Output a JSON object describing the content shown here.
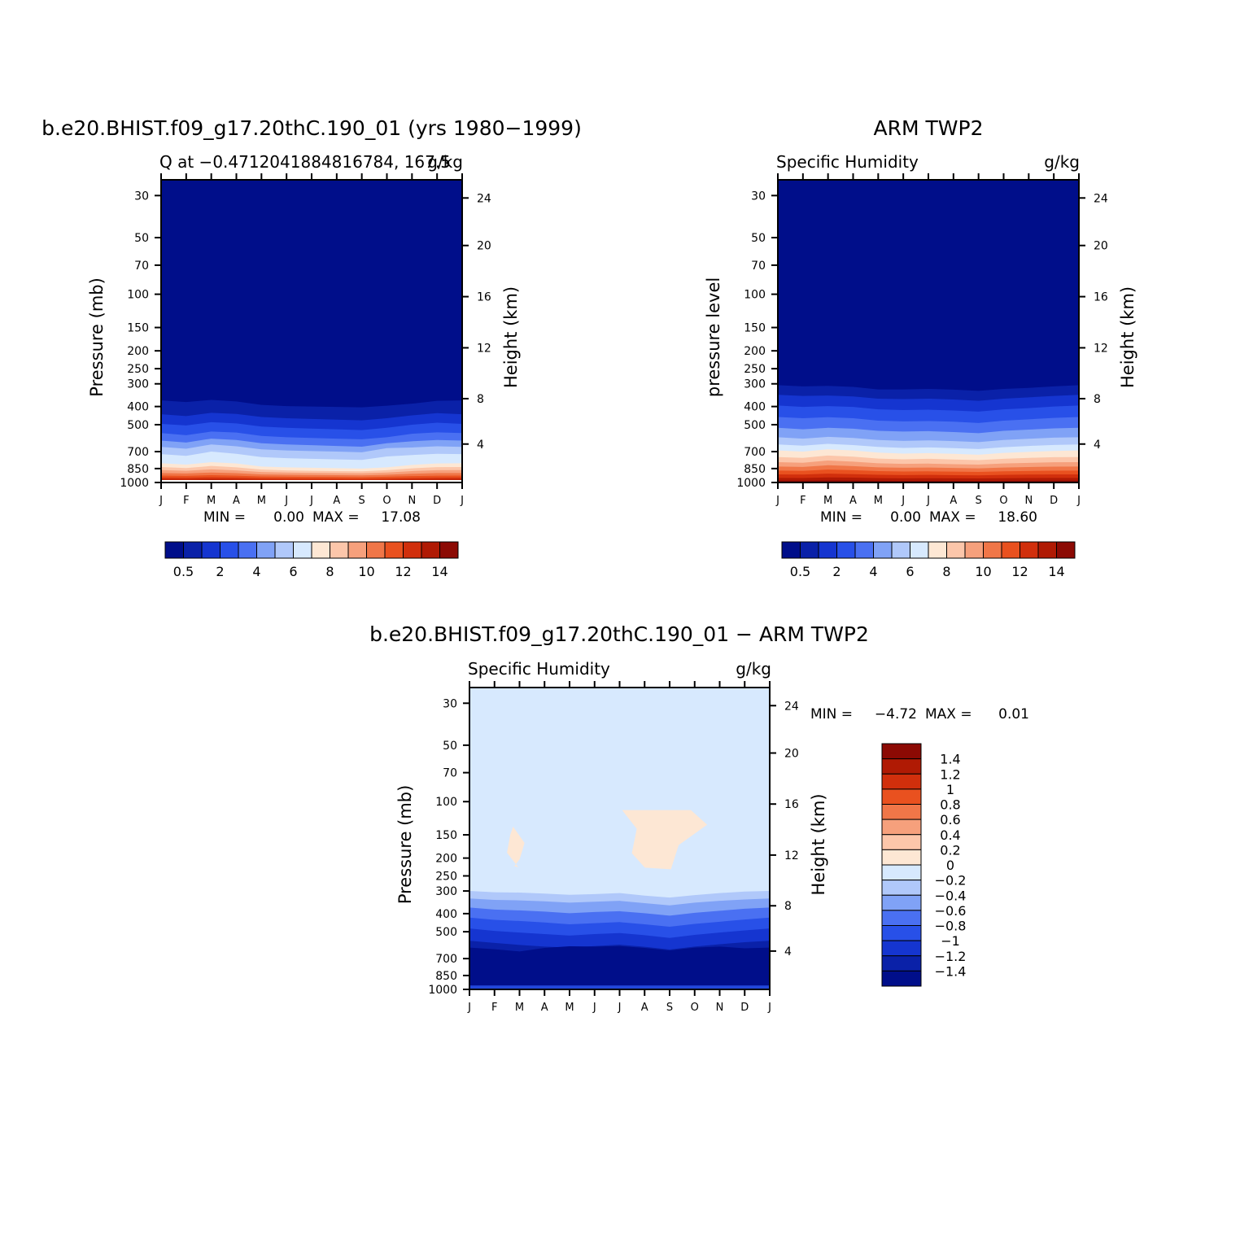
{
  "chart_data": [
    {
      "type": "heatmap",
      "title": "b.e20.BHIST.f09_g17.20thC.190_01 (yrs 1980−1999)",
      "subtitle_left": "Q at −0.4712041884816784, 167.5",
      "subtitle_right": "g/kg",
      "ylabel": "Pressure (mb)",
      "y2label": "Height (km)",
      "x_ticks": [
        "J",
        "F",
        "M",
        "A",
        "M",
        "J",
        "J",
        "A",
        "S",
        "O",
        "N",
        "D",
        "J"
      ],
      "pressure_ticks": [
        30,
        50,
        70,
        100,
        150,
        200,
        250,
        300,
        400,
        500,
        700,
        850,
        1000
      ],
      "height_ticks": [
        24,
        20,
        16,
        12,
        8,
        4
      ],
      "ylim": [
        1000,
        25
      ],
      "min_label": "MIN =",
      "min_value": "0.00",
      "max_label": "MAX =",
      "max_value": "17.08",
      "min": 0.0,
      "max": 17.08,
      "colorbar_labels": [
        "0.5",
        "2",
        "4",
        "6",
        "8",
        "10",
        "12",
        "14"
      ],
      "contour_levels": [
        0.5,
        1,
        2,
        3,
        4,
        5,
        6,
        7,
        8,
        9,
        10,
        11,
        12,
        13,
        14
      ],
      "contour_pressure_mb": [
        [
          370,
          378,
          368,
          375,
          392,
          398,
          400,
          402,
          404,
          396,
          386,
          372,
          370
        ],
        [
          440,
          450,
          432,
          438,
          455,
          462,
          466,
          470,
          474,
          462,
          446,
          434,
          440
        ],
        [
          495,
          505,
          485,
          492,
          512,
          520,
          525,
          530,
          535,
          520,
          500,
          488,
          495
        ],
        [
          555,
          570,
          545,
          552,
          575,
          585,
          590,
          595,
          600,
          585,
          560,
          550,
          555
        ],
        [
          610,
          625,
          595,
          605,
          630,
          640,
          646,
          652,
          658,
          630,
          615,
          605,
          610
        ],
        [
          660,
          675,
          640,
          655,
          680,
          690,
          695,
          700,
          705,
          670,
          665,
          655,
          660
        ],
        [
          720,
          735,
          700,
          718,
          745,
          755,
          760,
          765,
          770,
          740,
          728,
          718,
          720
        ],
        [
          800,
          812,
          790,
          802,
          830,
          838,
          842,
          846,
          850,
          838,
          815,
          802,
          800
        ],
        [
          835,
          845,
          825,
          838,
          860,
          868,
          872,
          875,
          878,
          866,
          848,
          836,
          835
        ],
        [
          865,
          872,
          858,
          868,
          885,
          890,
          893,
          896,
          898,
          890,
          875,
          866,
          865
        ],
        [
          895,
          900,
          890,
          897,
          910,
          914,
          916,
          918,
          920,
          914,
          903,
          896,
          895
        ],
        [
          922,
          926,
          918,
          923,
          932,
          935,
          937,
          938,
          940,
          935,
          928,
          923,
          922
        ],
        [
          945,
          948,
          942,
          946,
          953,
          955,
          956,
          957,
          958,
          955,
          950,
          946,
          945
        ],
        [
          966,
          968,
          964,
          967,
          971,
          972,
          973,
          974,
          975,
          972,
          969,
          967,
          966
        ],
        [
          984,
          985,
          983,
          984,
          987,
          988,
          988,
          989,
          990,
          988,
          986,
          984,
          984
        ]
      ]
    },
    {
      "type": "heatmap",
      "title": "ARM TWP2",
      "subtitle_left": "Specific Humidity",
      "subtitle_right": "g/kg",
      "ylabel": "pressure level",
      "y2label": "Height (km)",
      "x_ticks": [
        "J",
        "F",
        "M",
        "A",
        "M",
        "J",
        "J",
        "A",
        "S",
        "O",
        "N",
        "D",
        "J"
      ],
      "pressure_ticks": [
        30,
        50,
        70,
        100,
        150,
        200,
        250,
        300,
        400,
        500,
        700,
        850,
        1000
      ],
      "height_ticks": [
        24,
        20,
        16,
        12,
        8,
        4
      ],
      "ylim": [
        1000,
        25
      ],
      "min_label": "MIN =",
      "min_value": "0.00",
      "max_label": "MAX =",
      "max_value": "18.60",
      "min": 0.0,
      "max": 18.6,
      "colorbar_labels": [
        "0.5",
        "2",
        "4",
        "6",
        "8",
        "10",
        "12",
        "14"
      ],
      "contour_levels": [
        0.5,
        1,
        2,
        3,
        4,
        5,
        6,
        7,
        8,
        9,
        10,
        11,
        12,
        13,
        14
      ],
      "contour_pressure_mb": [
        [
          305,
          310,
          308,
          312,
          322,
          322,
          320,
          323,
          328,
          320,
          316,
          310,
          305
        ],
        [
          345,
          350,
          348,
          352,
          362,
          364,
          362,
          366,
          372,
          362,
          356,
          350,
          345
        ],
        [
          395,
          402,
          398,
          402,
          414,
          418,
          416,
          420,
          426,
          414,
          408,
          400,
          395
        ],
        [
          455,
          462,
          456,
          462,
          476,
          480,
          478,
          482,
          490,
          476,
          468,
          460,
          455
        ],
        [
          520,
          530,
          520,
          526,
          540,
          545,
          542,
          548,
          556,
          540,
          532,
          524,
          520
        ],
        [
          585,
          595,
          582,
          590,
          605,
          612,
          608,
          614,
          622,
          605,
          596,
          588,
          585
        ],
        [
          640,
          650,
          635,
          645,
          660,
          668,
          664,
          670,
          678,
          662,
          652,
          644,
          640
        ],
        [
          690,
          700,
          680,
          690,
          708,
          716,
          712,
          718,
          725,
          710,
          702,
          694,
          690
        ],
        [
          745,
          752,
          732,
          742,
          758,
          764,
          760,
          766,
          772,
          760,
          752,
          746,
          745
        ],
        [
          790,
          795,
          775,
          785,
          800,
          806,
          803,
          808,
          812,
          802,
          796,
          791,
          790
        ],
        [
          830,
          834,
          818,
          826,
          838,
          842,
          840,
          844,
          848,
          840,
          835,
          831,
          830
        ],
        [
          870,
          873,
          860,
          866,
          876,
          880,
          878,
          881,
          884,
          878,
          874,
          871,
          870
        ],
        [
          910,
          912,
          902,
          907,
          914,
          917,
          915,
          918,
          920,
          915,
          912,
          910,
          910
        ],
        [
          948,
          949,
          942,
          945,
          950,
          952,
          951,
          953,
          954,
          951,
          949,
          948,
          948
        ],
        [
          978,
          979,
          975,
          977,
          980,
          981,
          980,
          981,
          982,
          980,
          979,
          978,
          978
        ]
      ]
    },
    {
      "type": "heatmap",
      "title": "b.e20.BHIST.f09_g17.20thC.190_01 − ARM TWP2",
      "subtitle_left": "Specific Humidity",
      "subtitle_right": "g/kg",
      "ylabel": "Pressure (mb)",
      "y2label": "Height (km)",
      "x_ticks": [
        "J",
        "F",
        "M",
        "A",
        "M",
        "J",
        "J",
        "A",
        "S",
        "O",
        "N",
        "D",
        "J"
      ],
      "pressure_ticks": [
        30,
        50,
        70,
        100,
        150,
        200,
        250,
        300,
        400,
        500,
        700,
        850,
        1000
      ],
      "height_ticks": [
        24,
        20,
        16,
        12,
        8,
        4
      ],
      "ylim": [
        1000,
        25
      ],
      "min_label": "MIN =",
      "min_value": "−4.72",
      "max_label": "MAX =",
      "max_value": "0.01",
      "min": -4.72,
      "max": 0.01,
      "colorbar_labels": [
        "1.4",
        "1.2",
        "1",
        "0.8",
        "0.6",
        "0.4",
        "0.2",
        "0",
        "−0.2",
        "−0.4",
        "−0.6",
        "−0.8",
        "−1",
        "−1.2",
        "−1.4"
      ],
      "contour_levels": [
        -1.4,
        -1.2,
        -1,
        -0.8,
        -0.6,
        -0.4,
        -0.2,
        0,
        0.2,
        0.4,
        0.6,
        0.8,
        1,
        1.2,
        1.4
      ],
      "contour_pressure_mb": [
        [
          300,
          305,
          306,
          310,
          315,
          312,
          308,
          318,
          326,
          316,
          308,
          302,
          300
        ],
        [
          330,
          336,
          338,
          342,
          348,
          344,
          340,
          350,
          360,
          348,
          340,
          334,
          330
        ],
        [
          370,
          380,
          384,
          390,
          398,
          392,
          388,
          398,
          410,
          396,
          386,
          376,
          370
        ],
        [
          420,
          432,
          438,
          446,
          456,
          450,
          444,
          456,
          470,
          454,
          442,
          430,
          420
        ],
        [
          480,
          495,
          505,
          515,
          525,
          515,
          508,
          522,
          540,
          520,
          505,
          492,
          480
        ],
        [
          560,
          575,
          590,
          602,
          610,
          598,
          588,
          604,
          625,
          602,
          585,
          570,
          560
        ],
        [
          610,
          622,
          640,
          612,
          600,
          602,
          598,
          612,
          632,
          610,
          602,
          615,
          610
        ]
      ],
      "positive_regions_mb_months": [
        {
          "months": [
            1.5,
            2.2
          ],
          "pressure_mb": [
            150,
            220
          ]
        },
        {
          "months": [
            6.1,
            9.5
          ],
          "pressure_mb": [
            120,
            230
          ]
        }
      ]
    }
  ],
  "color_ramp": [
    "#000e8a",
    "#0a21a8",
    "#1535d0",
    "#2850e8",
    "#4a70f2",
    "#80a2f6",
    "#b0c8fa",
    "#d7e9fe",
    "#fde7d4",
    "#fcc6aa",
    "#f6a07c",
    "#f07648",
    "#e9511f",
    "#d12f0c",
    "#b01a04",
    "#8c0a04"
  ]
}
